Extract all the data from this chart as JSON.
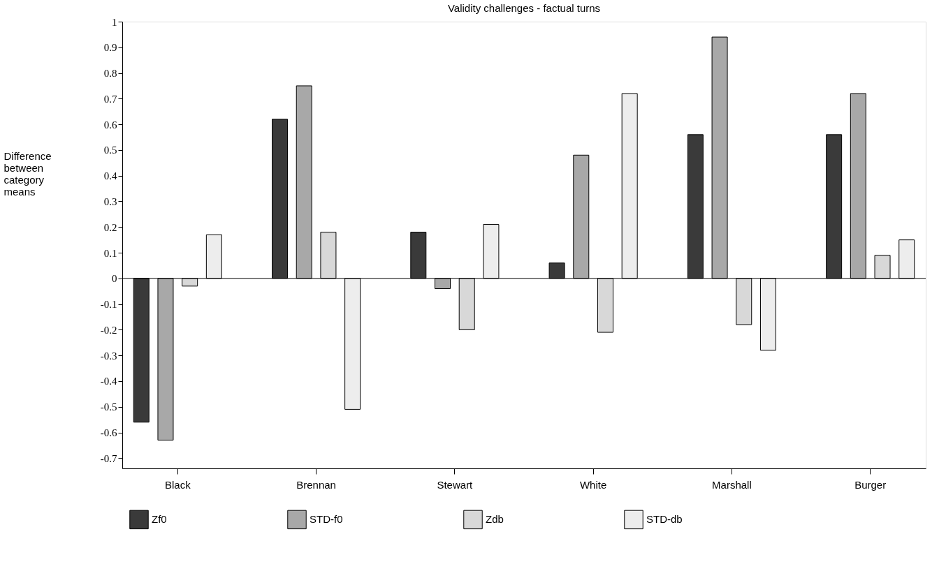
{
  "chart_data": {
    "type": "bar",
    "title": "Validity challenges - factual turns",
    "ylabel": "Difference between category means",
    "categories": [
      "Black",
      "Brennan",
      "Stewart",
      "White",
      "Marshall",
      "Burger"
    ],
    "series": [
      {
        "name": "Zf0",
        "color": "#3a3a3a",
        "values": [
          -0.56,
          0.62,
          0.18,
          0.06,
          0.56,
          0.56
        ]
      },
      {
        "name": "STD-f0",
        "color": "#a8a8a8",
        "values": [
          -0.63,
          0.75,
          -0.04,
          0.48,
          0.94,
          0.72
        ]
      },
      {
        "name": "Zdb",
        "color": "#d8d8d8",
        "values": [
          -0.03,
          0.18,
          -0.2,
          -0.21,
          -0.18,
          0.09
        ]
      },
      {
        "name": "STD-db",
        "color": "#ededed",
        "values": [
          0.17,
          -0.51,
          0.21,
          0.72,
          -0.28,
          0.15
        ]
      }
    ],
    "ylim": [
      -0.74,
      1
    ],
    "yticks": [
      -0.7,
      -0.6,
      -0.5,
      -0.4,
      -0.3,
      -0.2,
      -0.1,
      0,
      0.1,
      0.2,
      0.3,
      0.4,
      0.5,
      0.6,
      0.7,
      0.8,
      0.9,
      1
    ],
    "ref_lines": [
      {
        "axis": "y",
        "value": 0,
        "color": "#000000"
      }
    ],
    "grid": false,
    "legend": "bottom"
  }
}
